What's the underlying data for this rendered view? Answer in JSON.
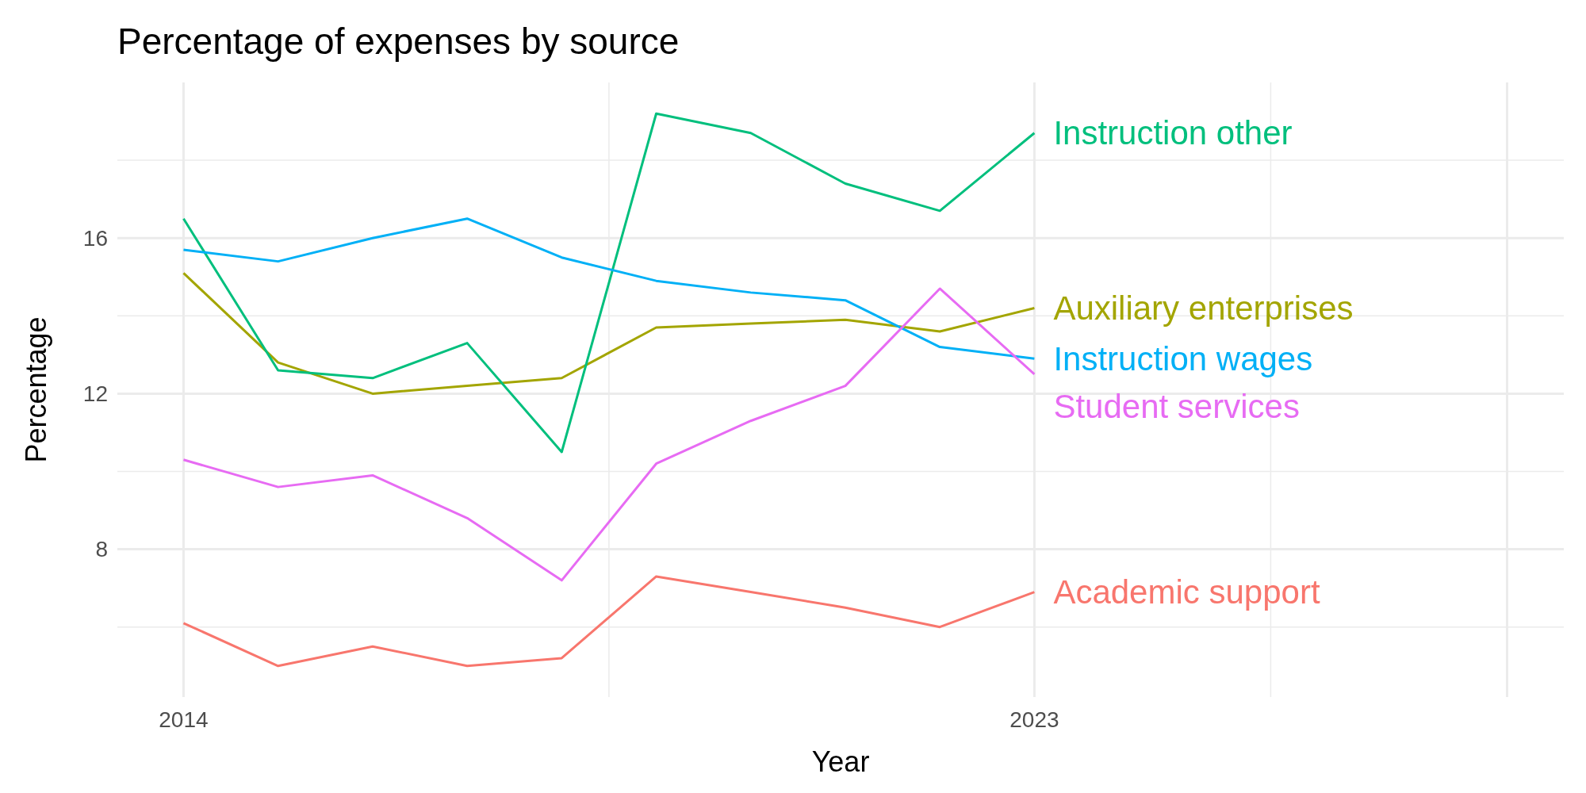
{
  "chart_data": {
    "type": "line",
    "title": "Percentage of expenses by source",
    "xlabel": "Year",
    "ylabel": "Percentage",
    "x": [
      2014,
      2015,
      2016,
      2017,
      2018,
      2019,
      2020,
      2021,
      2022,
      2023
    ],
    "series": [
      {
        "name": "Academic support",
        "color": "#f8766d",
        "values": [
          6.1,
          5.0,
          5.5,
          5.0,
          5.2,
          7.3,
          6.9,
          6.5,
          6.0,
          6.9
        ]
      },
      {
        "name": "Auxiliary enterprises",
        "color": "#a3a500",
        "values": [
          15.1,
          12.8,
          12.0,
          12.2,
          12.4,
          13.7,
          13.8,
          13.9,
          13.6,
          14.2
        ]
      },
      {
        "name": "Instruction other",
        "color": "#00bf7d",
        "values": [
          16.5,
          12.6,
          12.4,
          13.3,
          10.5,
          19.2,
          18.7,
          17.4,
          16.7,
          18.7
        ]
      },
      {
        "name": "Instruction wages",
        "color": "#00b0f6",
        "values": [
          15.7,
          15.4,
          16.0,
          16.5,
          15.5,
          14.9,
          14.6,
          14.4,
          13.2,
          12.9
        ]
      },
      {
        "name": "Student services",
        "color": "#e76bf3",
        "values": [
          10.3,
          9.6,
          9.9,
          8.8,
          7.2,
          10.2,
          11.3,
          12.2,
          14.7,
          12.5
        ]
      }
    ],
    "xlim": [
      2013.3,
      2028.6
    ],
    "xticks": [
      2014,
      2023,
      {
        "value": 2028,
        "label": null
      }
    ],
    "ylim": [
      4.2,
      20
    ],
    "yticks": [
      8,
      12,
      16
    ],
    "grid": true,
    "line_style": "solid",
    "marker": "none"
  }
}
